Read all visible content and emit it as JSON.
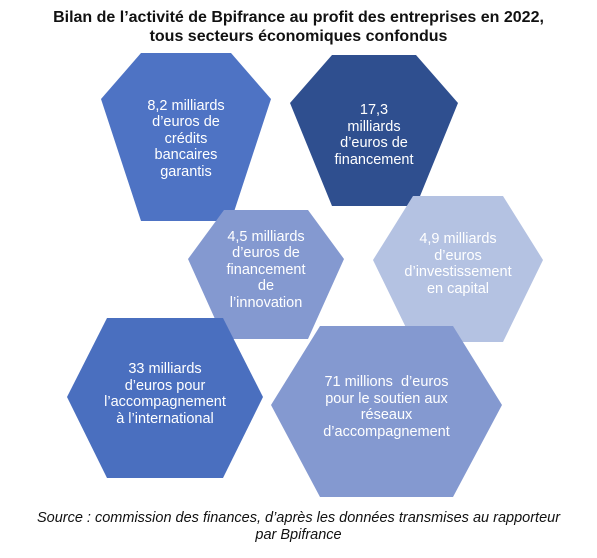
{
  "title": {
    "line1": "Bilan de l’activité de Bpifrance au profit des entreprises en 2022,",
    "line2": "tous secteurs économiques confondus"
  },
  "colors": {
    "medium_blue": "#4e73c4",
    "dark_blue": "#2f4f8f",
    "periwinkle": "#8499d0",
    "pale_blue": "#b4c2e2",
    "royal_blue": "#4a6fbf"
  },
  "hexagons": [
    {
      "id": "credits",
      "color": "medium_blue",
      "lines": [
        "8,2 milliards",
        "d’euros de",
        "crédits",
        "bancaires",
        "garantis"
      ]
    },
    {
      "id": "financement",
      "color": "dark_blue",
      "lines": [
        "17,3",
        "milliards",
        "d’euros de",
        "financement"
      ]
    },
    {
      "id": "innovation",
      "color": "periwinkle",
      "lines": [
        "4,5 milliards",
        "d’euros de",
        "financement",
        "de",
        "l’innovation"
      ]
    },
    {
      "id": "capital",
      "color": "pale_blue",
      "lines": [
        "4,9 milliards",
        "d’euros",
        "d’investissement",
        "en capital"
      ]
    },
    {
      "id": "international",
      "color": "royal_blue",
      "lines": [
        "33 milliards",
        "d’euros pour",
        "l’accompagnement",
        "à l’international"
      ]
    },
    {
      "id": "reseaux",
      "color": "periwinkle",
      "lines": [
        "71 millions  d’euros",
        "pour le soutien aux",
        "réseaux",
        "d’accompagnement"
      ]
    }
  ],
  "source": {
    "line1": "Source : commission des finances, d’après les données transmises au rapporteur",
    "line2": "par Bpifrance"
  }
}
